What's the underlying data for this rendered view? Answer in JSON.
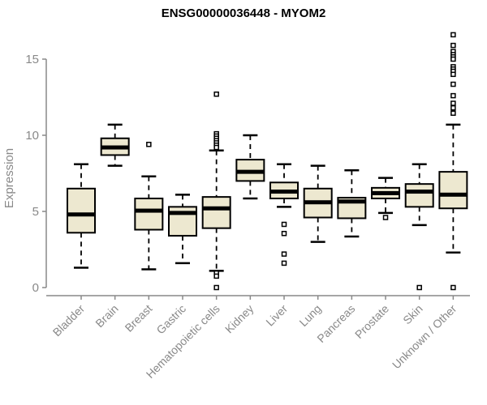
{
  "chart_data": {
    "type": "boxplot",
    "title": "ENSG00000036448 - MYOM2",
    "ylabel": "Expression",
    "xlabel": "",
    "y_ticks": [
      0,
      5,
      10,
      15
    ],
    "ylim": [
      0,
      17
    ],
    "grid": false,
    "legend": "none",
    "categories": [
      "Bladder",
      "Brain",
      "Breast",
      "Gastric",
      "Hematopoietic cells",
      "Kidney",
      "Liver",
      "Lung",
      "Pancreas",
      "Prostate",
      "Skin",
      "Unknown / Other"
    ],
    "boxes": [
      {
        "category": "Bladder",
        "whisker_low": 1.3,
        "q1": 3.6,
        "median": 4.8,
        "q3": 6.5,
        "whisker_high": 8.1,
        "outliers": []
      },
      {
        "category": "Brain",
        "whisker_low": 8.0,
        "q1": 8.7,
        "median": 9.2,
        "q3": 9.8,
        "whisker_high": 10.7,
        "outliers": []
      },
      {
        "category": "Breast",
        "whisker_low": 1.2,
        "q1": 3.8,
        "median": 5.05,
        "q3": 5.85,
        "whisker_high": 7.3,
        "outliers": [
          9.4
        ]
      },
      {
        "category": "Gastric",
        "whisker_low": 1.6,
        "q1": 3.4,
        "median": 4.9,
        "q3": 5.3,
        "whisker_high": 6.1,
        "outliers": []
      },
      {
        "category": "Hematopoietic cells",
        "whisker_low": 1.1,
        "q1": 3.9,
        "median": 5.2,
        "q3": 5.95,
        "whisker_high": 9.0,
        "outliers": [
          12.7,
          10.1,
          9.95,
          9.8,
          9.65,
          9.5,
          9.35,
          9.2,
          0.95,
          0.75,
          0.0
        ]
      },
      {
        "category": "Kidney",
        "whisker_low": 5.85,
        "q1": 7.0,
        "median": 7.6,
        "q3": 8.4,
        "whisker_high": 10.0,
        "outliers": []
      },
      {
        "category": "Liver",
        "whisker_low": 5.3,
        "q1": 5.85,
        "median": 6.3,
        "q3": 6.9,
        "whisker_high": 8.1,
        "outliers": [
          4.15,
          3.55,
          2.2,
          1.6
        ]
      },
      {
        "category": "Lung",
        "whisker_low": 3.0,
        "q1": 4.6,
        "median": 5.6,
        "q3": 6.5,
        "whisker_high": 8.0,
        "outliers": []
      },
      {
        "category": "Pancreas",
        "whisker_low": 3.35,
        "q1": 4.55,
        "median": 5.65,
        "q3": 5.9,
        "whisker_high": 7.7,
        "outliers": []
      },
      {
        "category": "Prostate",
        "whisker_low": 4.9,
        "q1": 5.85,
        "median": 6.2,
        "q3": 6.55,
        "whisker_high": 7.2,
        "outliers": [
          4.6
        ]
      },
      {
        "category": "Skin",
        "whisker_low": 4.1,
        "q1": 5.3,
        "median": 6.3,
        "q3": 6.8,
        "whisker_high": 8.1,
        "outliers": [
          0.0
        ]
      },
      {
        "category": "Unknown / Other",
        "whisker_low": 2.3,
        "q1": 5.2,
        "median": 6.1,
        "q3": 7.6,
        "whisker_high": 10.7,
        "outliers": [
          16.6,
          15.9,
          15.5,
          15.3,
          15.15,
          15.0,
          14.5,
          14.35,
          14.2,
          14.0,
          13.35,
          12.6,
          12.1,
          11.8,
          11.45,
          0.0
        ]
      }
    ]
  },
  "style": {
    "background": "#FFFFFF",
    "box_fill": "#EDE8D0",
    "box_border": "#000000",
    "median_color": "#000000",
    "whisker_color": "#000000",
    "outlier_color": "#000000",
    "axis_color": "#898989",
    "tick_label_color": "#898989",
    "axis_title_color": "#898989",
    "title_color": "#000000"
  }
}
